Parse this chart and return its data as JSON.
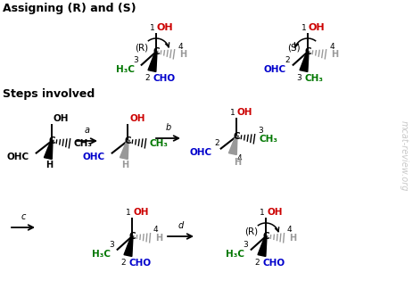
{
  "title": "Assigning (R) and (S)",
  "subtitle": "Steps involved",
  "bg_color": "#ffffff",
  "text_black": "#000000",
  "text_red": "#cc0000",
  "text_green": "#007700",
  "text_blue": "#0000cc",
  "text_gray": "#999999",
  "watermark": "mcat-review.org"
}
